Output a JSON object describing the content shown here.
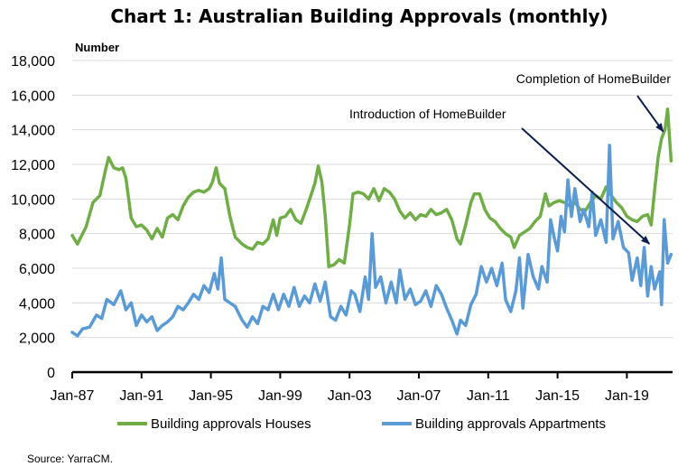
{
  "chart_data": {
    "type": "line",
    "title": "Chart 1: Australian Building Approvals (monthly)",
    "ylabel": "Number",
    "xlabel": "",
    "ylim": [
      0,
      18000
    ],
    "xlim": [
      1987.0,
      2021.6
    ],
    "yticks": [
      0,
      2000,
      4000,
      6000,
      8000,
      10000,
      12000,
      14000,
      16000,
      18000
    ],
    "ytick_labels": [
      "0",
      "2,000",
      "4,000",
      "6,000",
      "8,000",
      "10,000",
      "12,000",
      "14,000",
      "16,000",
      "18,000"
    ],
    "xticks": [
      1987,
      1991,
      1995,
      1999,
      2003,
      2007,
      2011,
      2015,
      2019
    ],
    "xtick_labels": [
      "Jan-87",
      "Jan-91",
      "Jan-95",
      "Jan-99",
      "Jan-03",
      "Jan-07",
      "Jan-11",
      "Jan-15",
      "Jan-19"
    ],
    "grid": true,
    "legend_position": "bottom",
    "series": [
      {
        "name": "Building approvals Houses",
        "color": "#70ad47",
        "x": [
          1987.0,
          1987.3,
          1987.8,
          1988.2,
          1988.6,
          1988.9,
          1989.1,
          1989.4,
          1989.7,
          1989.9,
          1990.1,
          1990.4,
          1990.7,
          1991.0,
          1991.3,
          1991.6,
          1991.9,
          1992.2,
          1992.5,
          1992.8,
          1993.1,
          1993.4,
          1993.7,
          1994.0,
          1994.3,
          1994.6,
          1994.9,
          1995.1,
          1995.3,
          1995.5,
          1995.8,
          1996.1,
          1996.4,
          1996.8,
          1997.1,
          1997.4,
          1997.7,
          1998.0,
          1998.3,
          1998.6,
          1998.8,
          1999.0,
          1999.3,
          1999.6,
          1999.9,
          2000.2,
          2000.5,
          2000.8,
          2001.0,
          2001.2,
          2001.4,
          2001.6,
          2001.8,
          2002.1,
          2002.4,
          2002.7,
          2003.0,
          2003.2,
          2003.5,
          2003.8,
          2004.1,
          2004.4,
          2004.7,
          2005.0,
          2005.3,
          2005.6,
          2005.9,
          2006.2,
          2006.5,
          2006.8,
          2007.1,
          2007.4,
          2007.7,
          2008.0,
          2008.3,
          2008.6,
          2008.9,
          2009.2,
          2009.4,
          2009.7,
          2010.0,
          2010.2,
          2010.5,
          2010.8,
          2011.1,
          2011.4,
          2011.7,
          2012.0,
          2012.3,
          2012.5,
          2012.8,
          2013.1,
          2013.4,
          2013.7,
          2014.0,
          2014.3,
          2014.5,
          2014.8,
          2015.1,
          2015.4,
          2015.7,
          2016.0,
          2016.3,
          2016.6,
          2016.9,
          2017.2,
          2017.5,
          2017.8,
          2018.1,
          2018.4,
          2018.7,
          2019.0,
          2019.3,
          2019.6,
          2019.9,
          2020.2,
          2020.4,
          2020.6,
          2020.8,
          2021.0,
          2021.2,
          2021.35,
          2021.55
        ],
        "values": [
          7900,
          7400,
          8400,
          9800,
          10200,
          11600,
          12400,
          11800,
          11700,
          11800,
          11200,
          8900,
          8400,
          8500,
          8200,
          7700,
          8300,
          7800,
          8900,
          9100,
          8800,
          9600,
          10100,
          10400,
          10500,
          10400,
          10600,
          11000,
          11800,
          10900,
          10600,
          9000,
          7800,
          7400,
          7200,
          7100,
          7500,
          7400,
          7700,
          8800,
          7900,
          8900,
          9000,
          9400,
          8800,
          8600,
          9400,
          10300,
          10900,
          11900,
          11000,
          9000,
          6100,
          6200,
          6500,
          6300,
          8500,
          10300,
          10400,
          10300,
          10000,
          10600,
          9900,
          10600,
          10400,
          10000,
          9300,
          8900,
          9200,
          8800,
          9100,
          9000,
          9400,
          9100,
          9200,
          9400,
          8800,
          7700,
          7400,
          8500,
          9800,
          10300,
          10300,
          9400,
          8900,
          8700,
          8300,
          8000,
          7800,
          7200,
          7900,
          8100,
          8300,
          8700,
          9000,
          10300,
          9600,
          9800,
          9900,
          9800,
          9600,
          9800,
          9400,
          9300,
          9800,
          10200,
          10000,
          10700,
          10200,
          9800,
          9500,
          9000,
          8800,
          8700,
          9000,
          9100,
          8500,
          10500,
          12400,
          13500,
          14000,
          15200,
          12200
        ]
      },
      {
        "name": "Building approvals Appartments",
        "color": "#5b9bd5",
        "x": [
          1987.0,
          1987.3,
          1987.6,
          1988.0,
          1988.4,
          1988.7,
          1989.0,
          1989.4,
          1989.8,
          1990.1,
          1990.4,
          1990.7,
          1991.0,
          1991.3,
          1991.6,
          1991.9,
          1992.2,
          1992.5,
          1992.8,
          1993.1,
          1993.4,
          1993.7,
          1994.0,
          1994.3,
          1994.6,
          1994.9,
          1995.2,
          1995.4,
          1995.6,
          1995.8,
          1996.1,
          1996.4,
          1996.8,
          1997.1,
          1997.4,
          1997.7,
          1998.0,
          1998.3,
          1998.6,
          1998.9,
          1999.2,
          1999.5,
          1999.8,
          2000.1,
          2000.4,
          2000.7,
          2001.0,
          2001.3,
          2001.6,
          2001.9,
          2002.2,
          2002.5,
          2002.8,
          2003.1,
          2003.3,
          2003.6,
          2003.9,
          2004.1,
          2004.3,
          2004.5,
          2004.8,
          2005.1,
          2005.4,
          2005.7,
          2005.9,
          2006.2,
          2006.5,
          2006.8,
          2007.1,
          2007.4,
          2007.7,
          2008.0,
          2008.3,
          2008.6,
          2008.9,
          2009.2,
          2009.4,
          2009.7,
          2010.0,
          2010.3,
          2010.6,
          2010.9,
          2011.2,
          2011.5,
          2011.8,
          2012.0,
          2012.3,
          2012.6,
          2012.8,
          2013.0,
          2013.3,
          2013.6,
          2013.9,
          2014.1,
          2014.4,
          2014.6,
          2014.8,
          2015.0,
          2015.2,
          2015.4,
          2015.6,
          2015.8,
          2016.0,
          2016.3,
          2016.5,
          2016.8,
          2017.0,
          2017.2,
          2017.5,
          2017.8,
          2018.0,
          2018.2,
          2018.5,
          2018.8,
          2019.1,
          2019.3,
          2019.6,
          2019.8,
          2020.0,
          2020.2,
          2020.4,
          2020.6,
          2020.9,
          2021.0,
          2021.15,
          2021.35,
          2021.55
        ],
        "values": [
          2300,
          2100,
          2500,
          2600,
          3300,
          3100,
          4200,
          3900,
          4700,
          3600,
          4000,
          2700,
          3300,
          2900,
          3200,
          2400,
          2700,
          2900,
          3200,
          3800,
          3600,
          4000,
          4500,
          4200,
          5000,
          4600,
          5700,
          4800,
          6600,
          4200,
          4000,
          3800,
          3000,
          2600,
          3200,
          2800,
          3800,
          3600,
          4500,
          3600,
          4500,
          3800,
          4900,
          3800,
          4400,
          4000,
          5100,
          4100,
          5200,
          3200,
          3000,
          3800,
          3300,
          4700,
          4500,
          3500,
          5500,
          4200,
          8000,
          4900,
          5500,
          4000,
          5200,
          4000,
          5900,
          4200,
          4800,
          3900,
          4100,
          4700,
          3800,
          5000,
          4500,
          3700,
          3000,
          2200,
          3000,
          2700,
          3900,
          4500,
          6100,
          5200,
          6000,
          5000,
          6300,
          4200,
          3500,
          4700,
          6600,
          3700,
          6800,
          5500,
          4800,
          6100,
          5200,
          8800,
          7800,
          7000,
          9000,
          8100,
          11100,
          9000,
          10600,
          8700,
          9400,
          8400,
          10400,
          7900,
          8800,
          7500,
          13100,
          7700,
          8700,
          7200,
          6900,
          5300,
          6600,
          5000,
          7200,
          4400,
          6100,
          4800,
          5800,
          3900,
          8800,
          6300,
          6800
        ]
      }
    ],
    "annotations": [
      {
        "text": "Completion of HomeBuilder",
        "target_x": 2021.2,
        "target_value": 14000
      },
      {
        "text": "Introduction of HomeBuilder",
        "target_x": 2020.3,
        "target_value": 9600
      }
    ]
  },
  "source": "Source: YarraCM."
}
